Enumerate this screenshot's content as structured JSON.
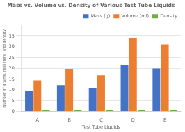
{
  "chart_data": {
    "type": "bar",
    "title": "Mass vs. Volume vs. Density of Various Test Tube Liquids",
    "xlabel": "Test Tube Liquids",
    "ylabel": "Number of grams, milliliters, and density",
    "categories": [
      "A",
      "B",
      "C",
      "D",
      "E"
    ],
    "series": [
      {
        "name": "Mass (g)",
        "color": "#4472c4",
        "values": [
          9.5,
          12.0,
          11.0,
          21.5,
          20.0
        ]
      },
      {
        "name": "Volume (ml)",
        "color": "#ed7d31",
        "values": [
          14.5,
          19.5,
          16.8,
          34.0,
          31.0
        ]
      },
      {
        "name": "Density",
        "color": "#70ad47",
        "values": [
          0.7,
          0.65,
          0.67,
          0.63,
          0.65
        ]
      }
    ],
    "ylim": [
      0,
      40
    ],
    "yticks": [
      0,
      5,
      10,
      15,
      20,
      25,
      30,
      35
    ],
    "grid": true,
    "legend": "upper right"
  }
}
